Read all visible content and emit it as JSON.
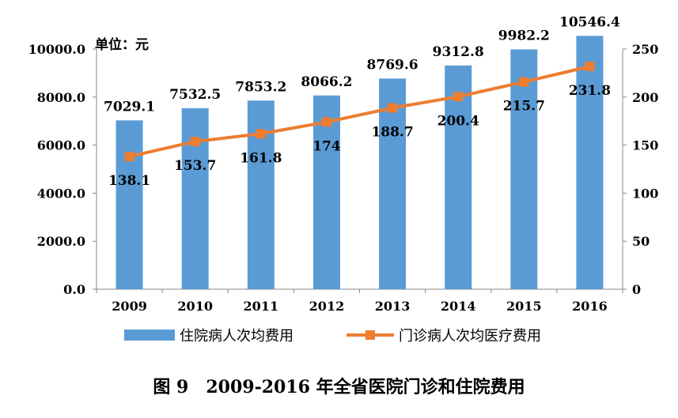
{
  "chart_data": {
    "type": "bar",
    "unit_label": "单位：元",
    "categories": [
      "2009",
      "2010",
      "2011",
      "2012",
      "2013",
      "2014",
      "2015",
      "2016"
    ],
    "series": [
      {
        "name": "住院病人次均费用",
        "type": "bar",
        "axis": "left",
        "color": "#5B9BD5",
        "values": [
          7029.1,
          7532.5,
          7853.2,
          8066.2,
          8769.6,
          9312.8,
          9982.2,
          10546.4
        ],
        "labels": [
          "7029.1",
          "7532.5",
          "7853.2",
          "8066.2",
          "8769.6",
          "9312.8",
          "9982.2",
          "10546.4"
        ]
      },
      {
        "name": "门诊病人次均医疗费用",
        "type": "line",
        "axis": "right",
        "color": "#ED7D31",
        "marker": "square",
        "values": [
          138.1,
          153.7,
          161.8,
          174,
          188.7,
          200.4,
          215.7,
          231.8
        ],
        "labels": [
          "138.1",
          "153.7",
          "161.8",
          "174",
          "188.7",
          "200.4",
          "215.7",
          "231.8"
        ]
      }
    ],
    "y_left": {
      "min": 0,
      "max": 10000,
      "step": 2000,
      "tick_labels": [
        "0.0",
        "2000.0",
        "4000.0",
        "6000.0",
        "8000.0",
        "10000.0"
      ]
    },
    "y_right": {
      "min": 0,
      "max": 250,
      "step": 50,
      "tick_labels": [
        "0",
        "50",
        "100",
        "150",
        "200",
        "250"
      ]
    },
    "grid": false,
    "legend_position": "bottom"
  },
  "caption": "图 9　2009-2016 年全省医院门诊和住院费用"
}
